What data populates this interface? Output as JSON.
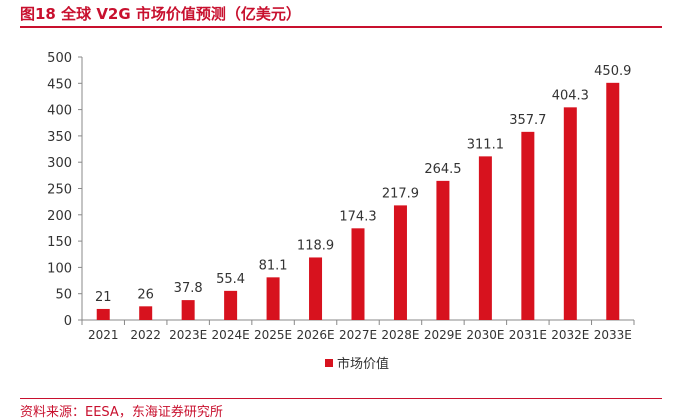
{
  "figure": {
    "title": "图18  全球 V2G 市场价值预测（亿美元）",
    "source": "资料来源：EESA，东海证券研究所"
  },
  "colors": {
    "accent": "#c8102e",
    "bar": "#d7121e",
    "axis": "#888888",
    "text": "#333333"
  },
  "chart_data": {
    "type": "bar",
    "categories": [
      "2021",
      "2022",
      "2023E",
      "2024E",
      "2025E",
      "2026E",
      "2027E",
      "2028E",
      "2029E",
      "2030E",
      "2031E",
      "2032E",
      "2033E"
    ],
    "series": [
      {
        "name": "市场价值",
        "values": [
          21,
          26,
          37.8,
          55.4,
          81.1,
          118.9,
          174.3,
          217.9,
          264.5,
          311.1,
          357.7,
          404.3,
          450.9
        ]
      }
    ],
    "ylim": [
      0,
      500
    ],
    "yticks": [
      0,
      50,
      100,
      150,
      200,
      250,
      300,
      350,
      400,
      450,
      500
    ],
    "grid": false,
    "legend_position": "bottom-center",
    "data_labels": true
  }
}
